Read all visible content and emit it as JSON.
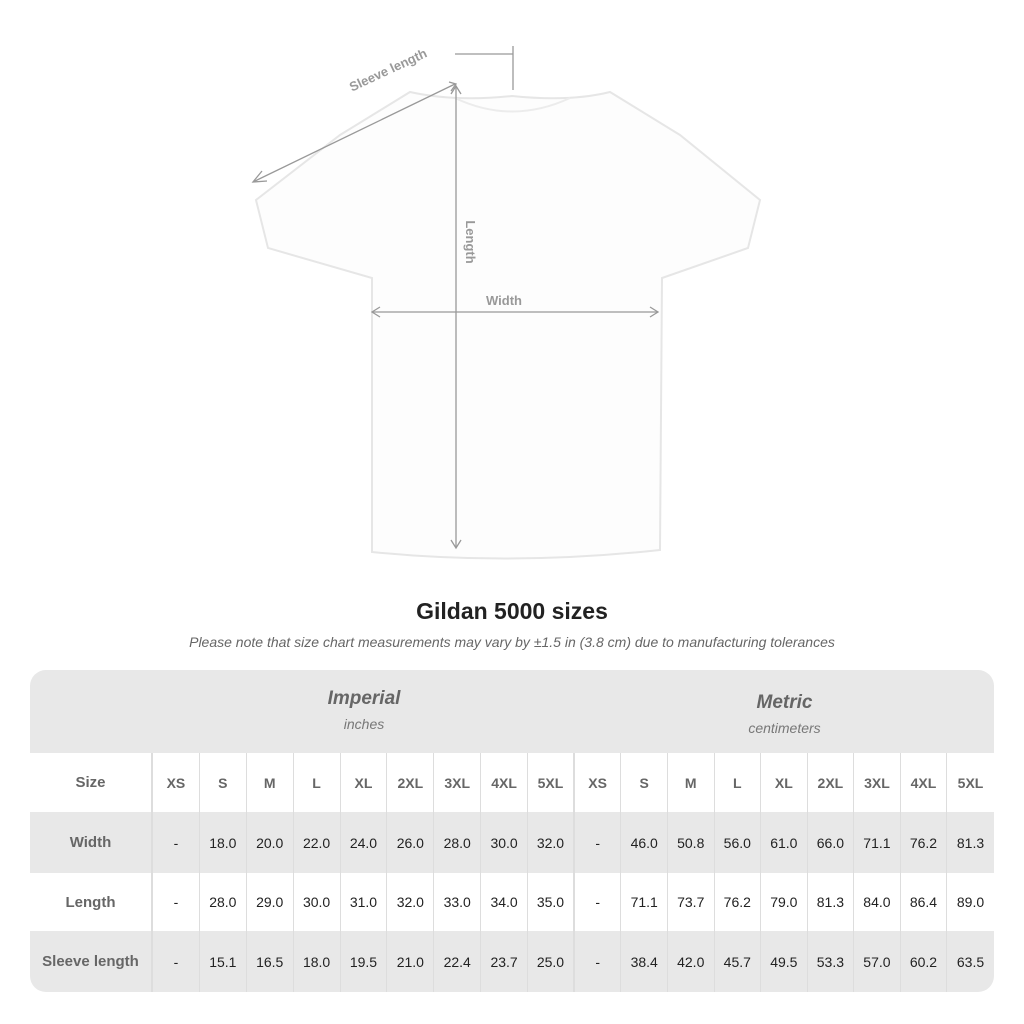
{
  "diagram": {
    "sleeve_label": "Sleeve length",
    "length_label": "Length",
    "width_label": "Width"
  },
  "title": "Gildan 5000 sizes",
  "note": "Please note that size chart measurements may vary by ±1.5 in (3.8 cm) due to manufacturing tolerances",
  "table": {
    "imperial": {
      "name": "Imperial",
      "unit": "inches"
    },
    "metric": {
      "name": "Metric",
      "unit": "centimeters"
    },
    "size_label": "Size",
    "sizes": [
      "XS",
      "S",
      "M",
      "L",
      "XL",
      "2XL",
      "3XL",
      "4XL",
      "5XL"
    ],
    "rows": [
      {
        "label": "Width",
        "imperial": [
          "-",
          "18.0",
          "20.0",
          "22.0",
          "24.0",
          "26.0",
          "28.0",
          "30.0",
          "32.0"
        ],
        "metric": [
          "-",
          "46.0",
          "50.8",
          "56.0",
          "61.0",
          "66.0",
          "71.1",
          "76.2",
          "81.3"
        ]
      },
      {
        "label": "Length",
        "imperial": [
          "-",
          "28.0",
          "29.0",
          "30.0",
          "31.0",
          "32.0",
          "33.0",
          "34.0",
          "35.0"
        ],
        "metric": [
          "-",
          "71.1",
          "73.7",
          "76.2",
          "79.0",
          "81.3",
          "84.0",
          "86.4",
          "89.0"
        ]
      },
      {
        "label": "Sleeve length",
        "imperial": [
          "-",
          "15.1",
          "16.5",
          "18.0",
          "19.5",
          "21.0",
          "22.4",
          "23.7",
          "25.0"
        ],
        "metric": [
          "-",
          "38.4",
          "42.0",
          "45.7",
          "49.5",
          "53.3",
          "57.0",
          "60.2",
          "63.5"
        ]
      }
    ]
  }
}
